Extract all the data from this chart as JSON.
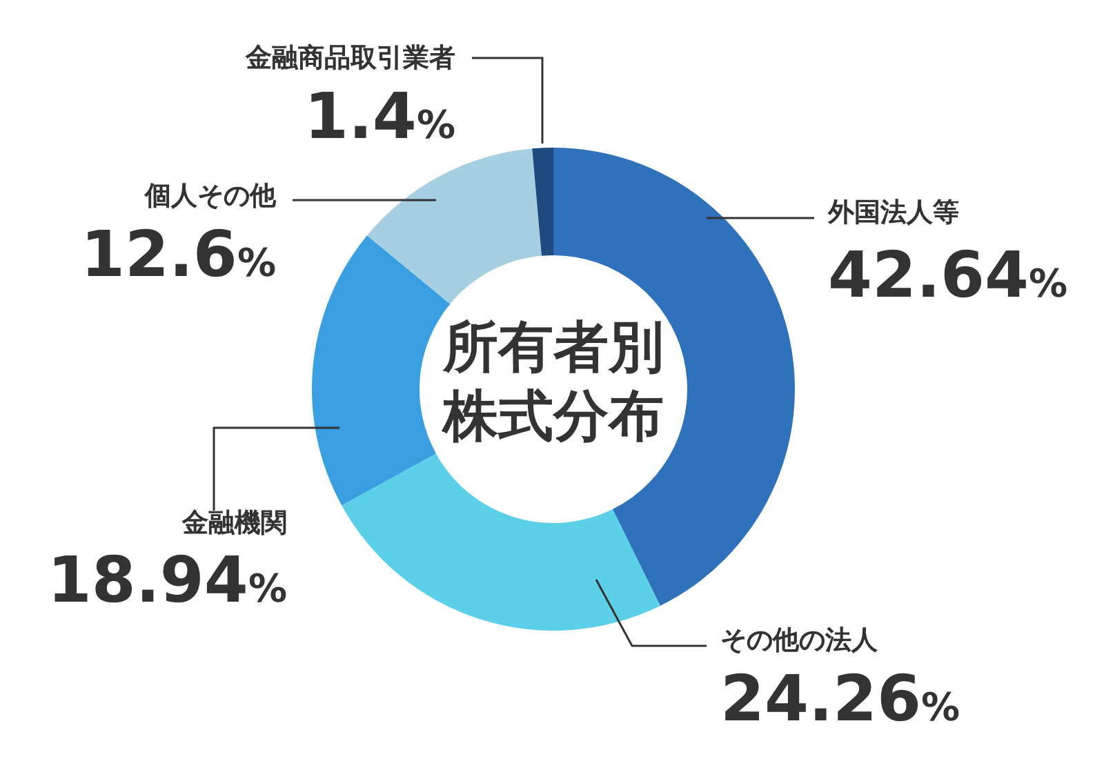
{
  "chart_data": {
    "type": "donut",
    "title": "所有者別株式分布",
    "categories": [
      "外国法人等",
      "その他の法人",
      "金融機関",
      "個人その他",
      "金融商品取引業者"
    ],
    "values": [
      42.64,
      24.26,
      18.94,
      12.6,
      1.4
    ],
    "value_labels": [
      "42.64%",
      "24.26%",
      "18.94%",
      "12.6%",
      "1.4%"
    ],
    "colors": [
      "#2f72bb",
      "#5bd0e8",
      "#3a9fe0",
      "#a6d0e2",
      "#1e4a80"
    ]
  }
}
